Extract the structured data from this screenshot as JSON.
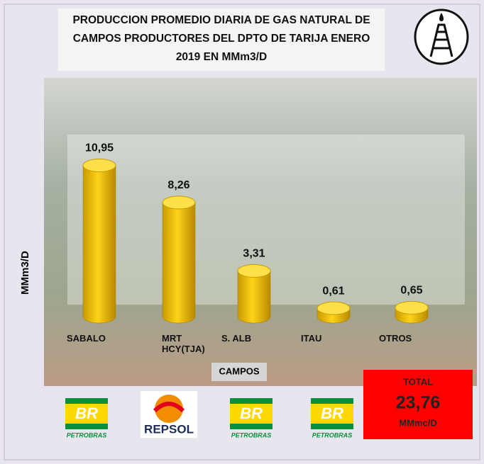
{
  "chart_data": {
    "type": "cylinder",
    "title": "PRODUCCION PROMEDIO DIARIA DE GAS NATURAL DE CAMPOS PRODUCTORES DEL DPTO DE TARIJA ENERO 2019 EN MMm3/D",
    "x_label": "CAMPOS",
    "y_label": "MMm3/D",
    "categories": [
      "SABALO",
      "MRT HCY(TJA)",
      "S. ALB",
      "ITAU",
      "OTROS"
    ],
    "values": [
      10.95,
      8.26,
      3.31,
      0.61,
      0.65
    ],
    "value_labels": [
      "10,95",
      "8,26",
      "3,31",
      "0,61",
      "0,65"
    ],
    "color": "#f5c400",
    "ylim": [
      0,
      12
    ],
    "total": {
      "title": "TOTAL",
      "value": 23.76,
      "value_label": "23,76",
      "unit": "MMmc/D"
    },
    "logos": [
      {
        "mark": "BR",
        "name": "PETROBRAS"
      },
      {
        "mark": "REPSOL"
      },
      {
        "mark": "BR",
        "name": "PETROBRAS"
      },
      {
        "mark": "BR",
        "name": "PETROBRAS"
      }
    ]
  }
}
